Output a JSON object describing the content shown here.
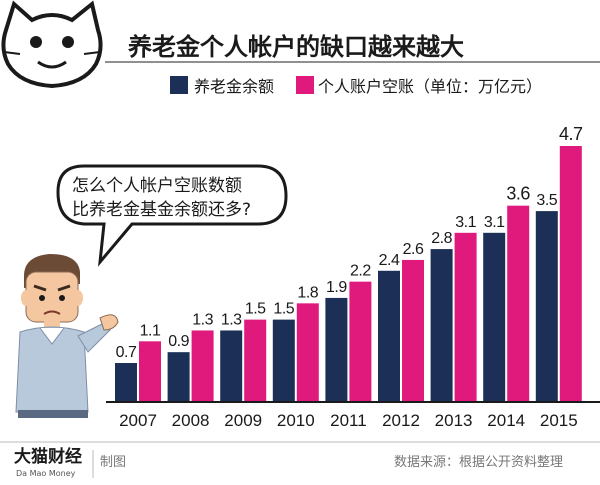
{
  "header": {
    "title": "养老金个人帐户的缺口越来越大"
  },
  "legend": {
    "items": [
      {
        "label": "养老金余额",
        "color": "#1b2f57"
      },
      {
        "label": "个人账户空账（单位：万亿元）",
        "color": "#e01a7d"
      }
    ]
  },
  "bubble": {
    "line1": "怎么个人帐户空账数额",
    "line2": "比养老金基金余额还多?"
  },
  "footer": {
    "brand": "大猫财经",
    "brand_sub": "Da Mao Money",
    "credit": "制图",
    "source": "数据来源：根据公开资料整理"
  },
  "icons": {
    "cat_logo": "cat-face-logo",
    "character": "worried-man-illustration"
  },
  "chart_data": {
    "type": "bar",
    "title": "养老金个人帐户的缺口越来越大",
    "xlabel": "",
    "ylabel": "",
    "categories": [
      "2007",
      "2008",
      "2009",
      "2010",
      "2011",
      "2012",
      "2013",
      "2014",
      "2015"
    ],
    "series": [
      {
        "name": "养老金余额",
        "color": "#1b2f57",
        "values": [
          0.7,
          0.9,
          1.3,
          1.5,
          1.9,
          2.4,
          2.8,
          3.1,
          3.5
        ]
      },
      {
        "name": "个人账户空账",
        "color": "#e01a7d",
        "values": [
          1.1,
          1.3,
          1.5,
          1.8,
          2.2,
          2.6,
          3.1,
          3.6,
          4.7
        ]
      }
    ],
    "value_labels": [
      [
        "0.7",
        "0.9",
        "1.3",
        "1.5",
        "1.9",
        "2.4",
        "2.8",
        "3.1",
        "3.5"
      ],
      [
        "1.1",
        "1.3",
        "1.5",
        "1.8",
        "2.2",
        "2.6",
        "3.1",
        "3.6",
        "4.7"
      ]
    ],
    "ylim": [
      0,
      4.7
    ],
    "grid": false,
    "legend_position": "top"
  }
}
